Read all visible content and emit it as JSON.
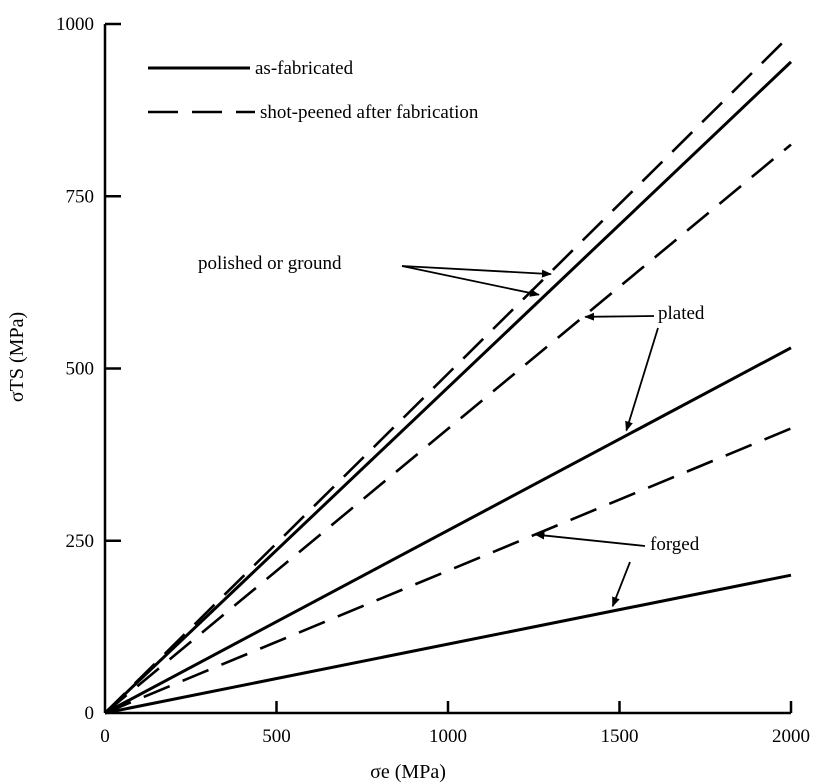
{
  "chart_data": {
    "type": "line",
    "xlabel": "σe (MPa)",
    "ylabel": "σTS (MPa)",
    "xlim": [
      0,
      2000
    ],
    "ylim": [
      0,
      1000
    ],
    "x_ticks": [
      0,
      500,
      1000,
      1500,
      2000
    ],
    "y_ticks": [
      0,
      250,
      500,
      750,
      1000
    ],
    "grid": false,
    "legend": {
      "position": "top-left",
      "entries": [
        {
          "label": "as-fabricated",
          "style": "solid"
        },
        {
          "label": "shot-peened after fabrication",
          "style": "dashed"
        }
      ]
    },
    "series": [
      {
        "style": "dashed",
        "x": [
          0,
          2000
        ],
        "y": [
          0,
          985
        ]
      },
      {
        "style": "solid",
        "x": [
          0,
          2000
        ],
        "y": [
          0,
          945
        ]
      },
      {
        "style": "dashed",
        "x": [
          0,
          2000
        ],
        "y": [
          0,
          825
        ]
      },
      {
        "style": "solid",
        "x": [
          0,
          2000
        ],
        "y": [
          0,
          530
        ]
      },
      {
        "style": "dashed",
        "x": [
          0,
          2000
        ],
        "y": [
          0,
          413
        ]
      },
      {
        "style": "solid",
        "x": [
          0,
          2000
        ],
        "y": [
          0,
          200
        ]
      }
    ],
    "annotations": [
      {
        "text": "polished or ground",
        "targets": [
          [
            1300,
            637
          ],
          [
            1265,
            607
          ]
        ]
      },
      {
        "text": "plated",
        "targets": [
          [
            1400,
            575
          ],
          [
            1520,
            410
          ]
        ]
      },
      {
        "text": "forged",
        "targets": [
          [
            1255,
            259
          ],
          [
            1480,
            155
          ]
        ]
      }
    ],
    "colors": {
      "line": "#000000",
      "background": "#ffffff"
    }
  }
}
